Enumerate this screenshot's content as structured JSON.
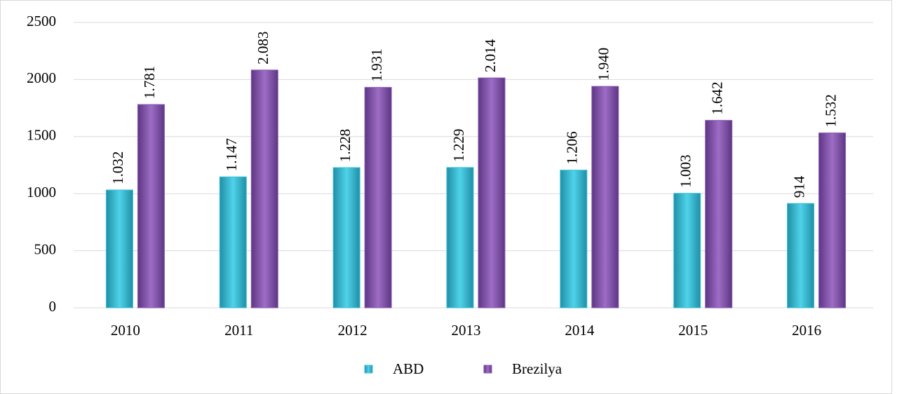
{
  "chart_data": {
    "type": "bar",
    "categories": [
      "2010",
      "2011",
      "2012",
      "2013",
      "2014",
      "2015",
      "2016"
    ],
    "series": [
      {
        "name": "ABD",
        "color": "#3cbfd6",
        "values": [
          1032,
          1147,
          1228,
          1229,
          1206,
          1003,
          914
        ],
        "value_labels": [
          "1.032",
          "1.147",
          "1.228",
          "1.229",
          "1.206",
          "1.003",
          "914"
        ]
      },
      {
        "name": "Brezilya",
        "color": "#8b5ab3",
        "values": [
          1781,
          2083,
          1931,
          2014,
          1940,
          1642,
          1532
        ],
        "value_labels": [
          "1.781",
          "2.083",
          "1.931",
          "2.014",
          "1.940",
          "1.642",
          "1.532"
        ]
      }
    ],
    "ylim": [
      0,
      2500
    ],
    "yticks": [
      0,
      500,
      1000,
      1500,
      2000,
      2500
    ],
    "grid": true,
    "legend": "bottom"
  }
}
